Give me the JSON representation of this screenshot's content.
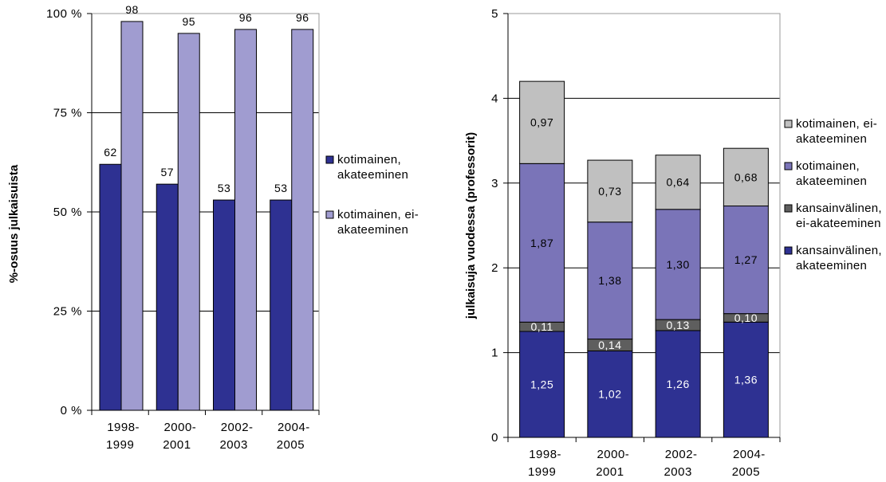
{
  "chart_data": [
    {
      "type": "bar",
      "ylabel": "%-osuus julkaisuista",
      "ylim": [
        0,
        100
      ],
      "yticks": [
        0,
        25,
        50,
        75,
        100
      ],
      "ytick_labels": [
        "0 %",
        "25 %",
        "50 %",
        "75 %",
        "100 %"
      ],
      "categories": [
        [
          "1998-",
          "1999"
        ],
        [
          "2000-",
          "2001"
        ],
        [
          "2002-",
          "2003"
        ],
        [
          "2004-",
          "2005"
        ]
      ],
      "series": [
        {
          "name": [
            "kotimainen,",
            "akateeminen"
          ],
          "values": [
            62,
            57,
            53,
            53
          ],
          "color": "#2e3192"
        },
        {
          "name": [
            "kotimainen, ei-",
            "akateeminen"
          ],
          "values": [
            98,
            95,
            96,
            96
          ],
          "color": "#a09cd0"
        }
      ],
      "grid": true,
      "legend_position": "right"
    },
    {
      "type": "bar",
      "stacked": true,
      "ylabel": "julkaisuja vuodessa (professorit)",
      "ylim": [
        0,
        5
      ],
      "yticks": [
        0,
        1,
        2,
        3,
        4,
        5
      ],
      "ytick_labels": [
        "0",
        "1",
        "2",
        "3",
        "4",
        "5"
      ],
      "categories": [
        [
          "1998-",
          "1999"
        ],
        [
          "2000-",
          "2001"
        ],
        [
          "2002-",
          "2003"
        ],
        [
          "2004-",
          "2005"
        ]
      ],
      "series": [
        {
          "name": [
            "kansainvälinen,",
            "akateeminen"
          ],
          "values": [
            1.25,
            1.02,
            1.26,
            1.36
          ],
          "labels": [
            "1,25",
            "1,02",
            "1,26",
            "1,36"
          ],
          "color": "#2e3192",
          "label_color": "#ffffff"
        },
        {
          "name": [
            "kansainvälinen,",
            "ei-akateeminen"
          ],
          "values": [
            0.11,
            0.14,
            0.13,
            0.1
          ],
          "labels": [
            "0,11",
            "0,14",
            "0,13",
            "0,10"
          ],
          "color": "#5e5e5e",
          "label_color": "#ffffff"
        },
        {
          "name": [
            "kotimainen,",
            "akateeminen"
          ],
          "values": [
            1.87,
            1.38,
            1.3,
            1.27
          ],
          "labels": [
            "1,87",
            "1,38",
            "1,30",
            "1,27"
          ],
          "color": "#7a74b8",
          "label_color": "#000000"
        },
        {
          "name": [
            "kotimainen, ei-",
            "akateeminen"
          ],
          "values": [
            0.97,
            0.73,
            0.64,
            0.68
          ],
          "labels": [
            "0,97",
            "0,73",
            "0,64",
            "0,68"
          ],
          "color": "#c0c0c0",
          "label_color": "#000000"
        }
      ],
      "legend_order": [
        3,
        2,
        1,
        0
      ],
      "grid": true,
      "legend_position": "right"
    }
  ]
}
